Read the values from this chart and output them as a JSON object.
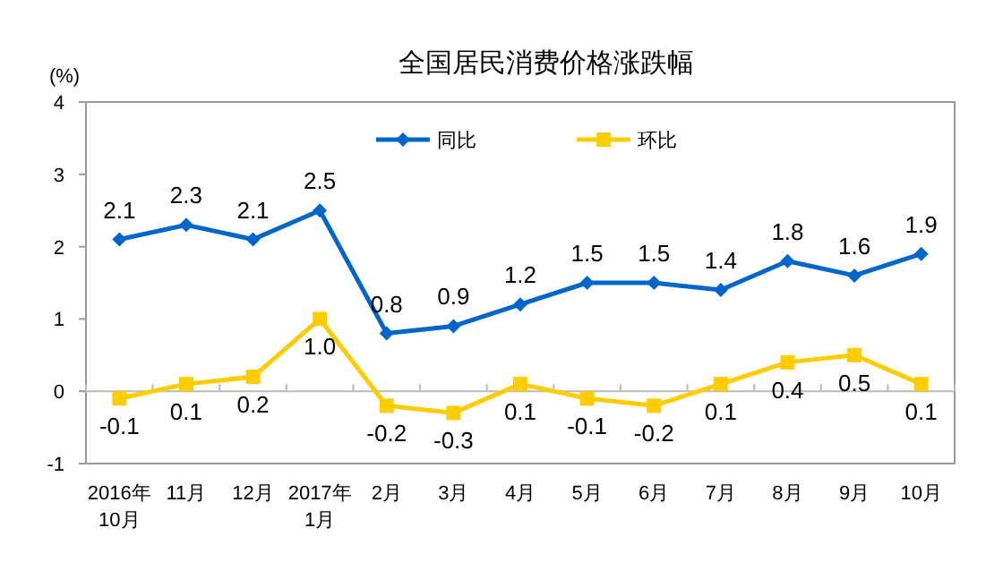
{
  "chart_data": {
    "type": "line",
    "title": "全国居民消费价格涨跌幅",
    "ylabel": "(%)",
    "categories": [
      "2016年\n10月",
      "11月",
      "12月",
      "2017年\n1月",
      "2月",
      "3月",
      "4月",
      "5月",
      "6月",
      "7月",
      "8月",
      "9月",
      "10月"
    ],
    "series": [
      {
        "name": "同比",
        "color": "#0066cc",
        "marker": "diamond",
        "values": [
          2.1,
          2.3,
          2.1,
          2.5,
          0.8,
          0.9,
          1.2,
          1.5,
          1.5,
          1.4,
          1.8,
          1.6,
          1.9
        ],
        "value_labels": [
          "2.1",
          "2.3",
          "2.1",
          "2.5",
          "0.8",
          "0.9",
          "1.2",
          "1.5",
          "1.5",
          "1.4",
          "1.8",
          "1.6",
          "1.9"
        ]
      },
      {
        "name": "环比",
        "color": "#ffcc00",
        "marker": "square",
        "values": [
          -0.1,
          0.1,
          0.2,
          1.0,
          -0.2,
          -0.3,
          0.1,
          -0.1,
          -0.2,
          0.1,
          0.4,
          0.5,
          0.1
        ],
        "value_labels": [
          "-0.1",
          "0.1",
          "0.2",
          "1.0",
          "-0.2",
          "-0.3",
          "0.1",
          "-0.1",
          "-0.2",
          "0.1",
          "0.4",
          "0.5",
          "0.1"
        ]
      }
    ],
    "ylim": [
      -1,
      4
    ],
    "yticks": [
      -1,
      0,
      1,
      2,
      3,
      4
    ],
    "legend": "top"
  }
}
